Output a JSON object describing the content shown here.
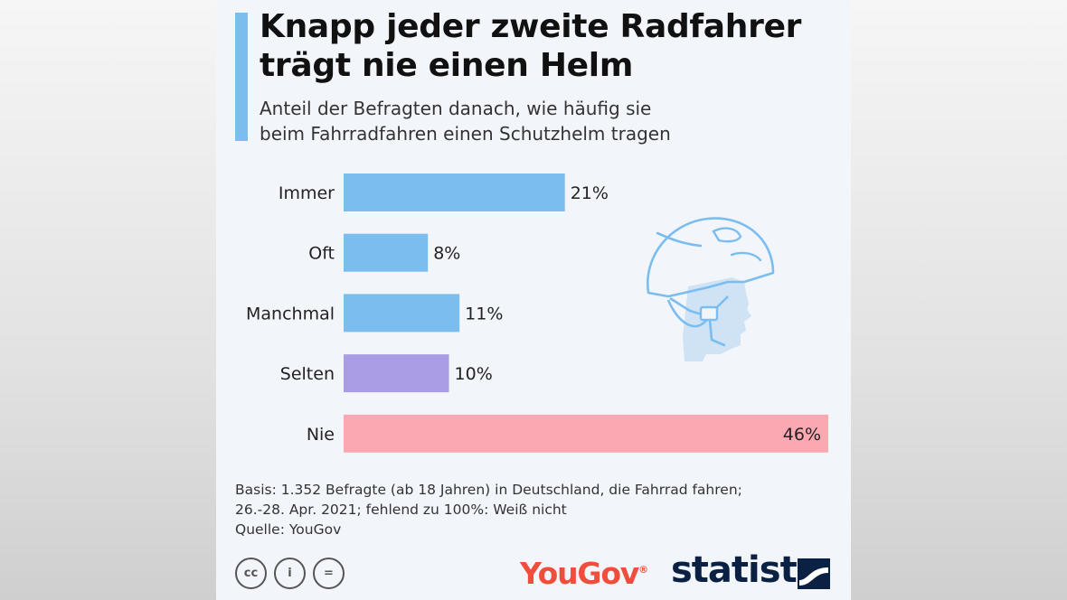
{
  "header": {
    "title_line1": "Knapp jeder zweite Radfahrer",
    "title_line2": "trägt nie einen Helm",
    "subtitle_line1": "Anteil der Befragten danach, wie häufig sie",
    "subtitle_line2": "beim Fahrradfahren einen Schutzhelm tragen"
  },
  "chart_data": {
    "type": "bar",
    "orientation": "horizontal",
    "title": "Knapp jeder zweite Radfahrer trägt nie einen Helm",
    "subtitle": "Anteil der Befragten danach, wie häufig sie beim Fahrradfahren einen Schutzhelm tragen",
    "categories": [
      "Immer",
      "Oft",
      "Manchmal",
      "Selten",
      "Nie"
    ],
    "values": [
      21,
      8,
      11,
      10,
      46
    ],
    "labels": [
      "21%",
      "8%",
      "11%",
      "10%",
      "46%"
    ],
    "unit": "%",
    "xlim": [
      0,
      46
    ],
    "colors": [
      "#7cbdf0",
      "#7cbdf0",
      "#7cbdf0",
      "#ab9de5",
      "#fba8b2"
    ],
    "grid": false,
    "xlabel": "",
    "ylabel": ""
  },
  "footer": {
    "basis_line1": "Basis: 1.352 Befragte (ab 18 Jahren) in Deutschland, die Fahrrad fahren;",
    "basis_line2": "26.-28. Apr. 2021; fehlend zu 100%: Weiß nicht",
    "source": "Quelle: YouGov",
    "license_cc": "cc",
    "license_by": "i",
    "license_nd": "=",
    "yougov_logo": "YouGov",
    "statista_logo": "statista"
  },
  "icons": {
    "helmet": "helmet-head-icon",
    "accent_color": "#7cbdf0",
    "brand_color": "#0b2144",
    "yougov_color": "#f04e3c"
  }
}
